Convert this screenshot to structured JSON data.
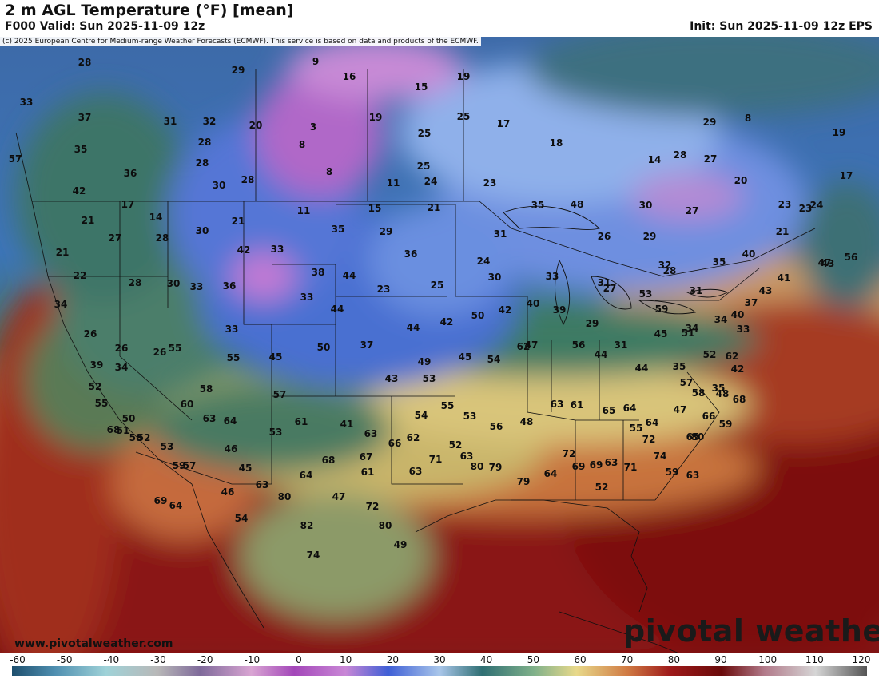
{
  "header": {
    "title": "2 m AGL Temperature (°F) [mean]",
    "valid": "F000 Valid: Sun 2025-11-09 12z",
    "init": "Init: Sun 2025-11-09 12z EPS"
  },
  "credit": "(c) 2025 European Centre for Medium-range Weather Forecasts (ECMWF). This service is based on data and products of the ECMWF.",
  "website": "www.pivotalweather.com",
  "brand": "pivotal weather",
  "colorbar": {
    "ticks": [
      "-60",
      "-50",
      "-40",
      "-30",
      "-20",
      "-10",
      "0",
      "10",
      "20",
      "30",
      "40",
      "50",
      "60",
      "70",
      "80",
      "90",
      "100",
      "110",
      "120"
    ],
    "colors": {
      "cold_pink": "#d9a5d3",
      "purple": "#9b45b8",
      "blue": "#3f5fd6",
      "light_blue": "#a9c6ea",
      "teal": "#2f6f73",
      "green": "#5a8f5c",
      "yellow": "#e8d98a",
      "orange": "#d07a43",
      "red": "#9e1a1a",
      "dark_red": "#6a0a0a",
      "gray": "#8d8d8d"
    }
  },
  "temps": [
    "28",
    "29",
    "9",
    "16",
    "19",
    "33",
    "37",
    "31",
    "32",
    "20",
    "15",
    "3",
    "19",
    "25",
    "25",
    "17",
    "35",
    "28",
    "8",
    "25",
    "18",
    "57",
    "28",
    "36",
    "30",
    "28",
    "8",
    "11",
    "24",
    "23",
    "14",
    "42",
    "28",
    "29",
    "27",
    "8",
    "19",
    "17",
    "17",
    "14",
    "21",
    "11",
    "15",
    "21",
    "29",
    "35",
    "35",
    "48",
    "30",
    "27",
    "20",
    "23",
    "24",
    "21",
    "27",
    "28",
    "30",
    "42",
    "33",
    "36",
    "31",
    "24",
    "26",
    "29",
    "21",
    "23",
    "21",
    "22",
    "28",
    "30",
    "33",
    "36",
    "38",
    "44",
    "23",
    "25",
    "30",
    "33",
    "31",
    "32",
    "35",
    "40",
    "47",
    "56",
    "34",
    "26",
    "26",
    "26",
    "33",
    "33",
    "44",
    "44",
    "42",
    "50",
    "42",
    "40",
    "39",
    "29",
    "27",
    "53",
    "28",
    "31",
    "37",
    "43",
    "43",
    "41",
    "59",
    "34",
    "34",
    "33",
    "39",
    "34",
    "55",
    "58",
    "55",
    "45",
    "50",
    "37",
    "43",
    "49",
    "53",
    "45",
    "54",
    "62",
    "47",
    "56",
    "31",
    "44",
    "44",
    "45",
    "51",
    "52",
    "62",
    "42",
    "40",
    "35",
    "35",
    "48",
    "52",
    "55",
    "50",
    "51",
    "58",
    "60",
    "63",
    "64",
    "53",
    "57",
    "61",
    "41",
    "63",
    "54",
    "55",
    "53",
    "56",
    "48",
    "63",
    "61",
    "65",
    "64",
    "55",
    "64",
    "57",
    "47",
    "58",
    "59",
    "66",
    "65",
    "68",
    "52",
    "53",
    "59",
    "57",
    "46",
    "45",
    "63",
    "64",
    "68",
    "67",
    "61",
    "62",
    "66",
    "71",
    "63",
    "52",
    "63",
    "80",
    "79",
    "79",
    "64",
    "72",
    "69",
    "69",
    "52",
    "63",
    "71",
    "72",
    "74",
    "59",
    "63",
    "80",
    "68",
    "69",
    "64",
    "46",
    "54",
    "80",
    "82",
    "74",
    "47",
    "72",
    "80",
    "49"
  ]
}
